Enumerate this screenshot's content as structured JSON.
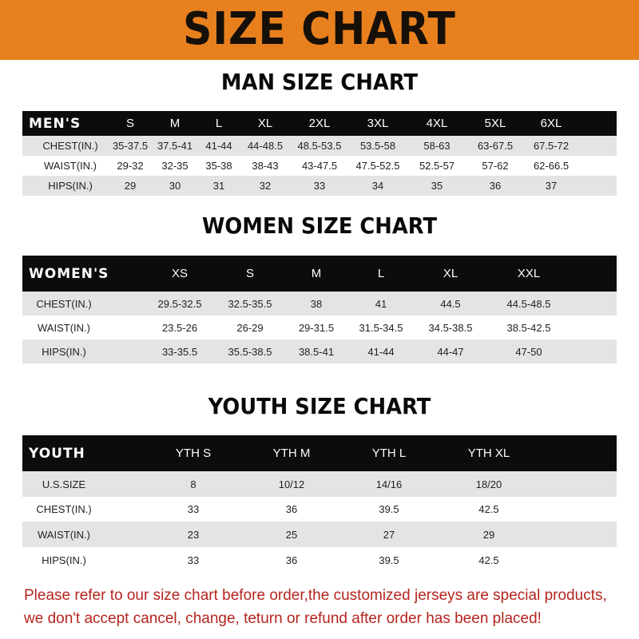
{
  "banner": {
    "title": "SIZE CHART",
    "color": "#e8801e"
  },
  "men": {
    "title": "MAN SIZE CHART",
    "header": [
      "MEN'S",
      "S",
      "M",
      "L",
      "XL",
      "2XL",
      "3XL",
      "4XL",
      "5XL",
      "6XL"
    ],
    "rows": [
      [
        "CHEST(IN.)",
        "35-37.5",
        "37.5-41",
        "41-44",
        "44-48.5",
        "48.5-53.5",
        "53.5-58",
        "58-63",
        "63-67.5",
        "67.5-72"
      ],
      [
        "WAIST(IN.)",
        "29-32",
        "32-35",
        "35-38",
        "38-43",
        "43-47.5",
        "47.5-52.5",
        "52.5-57",
        "57-62",
        "62-66.5"
      ],
      [
        "HIPS(IN.)",
        "29",
        "30",
        "31",
        "32",
        "33",
        "34",
        "35",
        "36",
        "37"
      ]
    ]
  },
  "women": {
    "title": "WOMEN SIZE CHART",
    "header": [
      "WOMEN'S",
      "XS",
      "S",
      "M",
      "L",
      "XL",
      "XXL"
    ],
    "rows": [
      [
        "CHEST(IN.)",
        "29.5-32.5",
        "32.5-35.5",
        "38",
        "41",
        "44.5",
        "44.5-48.5"
      ],
      [
        "WAIST(IN.)",
        "23.5-26",
        "26-29",
        "29-31.5",
        "31.5-34.5",
        "34.5-38.5",
        "38.5-42.5"
      ],
      [
        "HIPS(IN.)",
        "33-35.5",
        "35.5-38.5",
        "38.5-41",
        "41-44",
        "44-47",
        "47-50"
      ]
    ]
  },
  "youth": {
    "title": "YOUTH SIZE CHART",
    "header": [
      "YOUTH",
      "YTH S",
      "YTH M",
      "YTH L",
      "YTH XL"
    ],
    "rows": [
      [
        "U.S.SIZE",
        "8",
        "10/12",
        "14/16",
        "18/20"
      ],
      [
        "CHEST(IN.)",
        "33",
        "36",
        "39.5",
        "42.5"
      ],
      [
        "WAIST(IN.)",
        "23",
        "25",
        "27",
        "29"
      ],
      [
        "HIPS(IN.)",
        "33",
        "36",
        "39.5",
        "42.5"
      ]
    ]
  },
  "footer": {
    "line1": "Please refer to our size chart before order,the customized jerseys are special products,",
    "line2": "we don't accept cancel, change, teturn or refund after order has been placed!",
    "color": "#b5251f"
  }
}
